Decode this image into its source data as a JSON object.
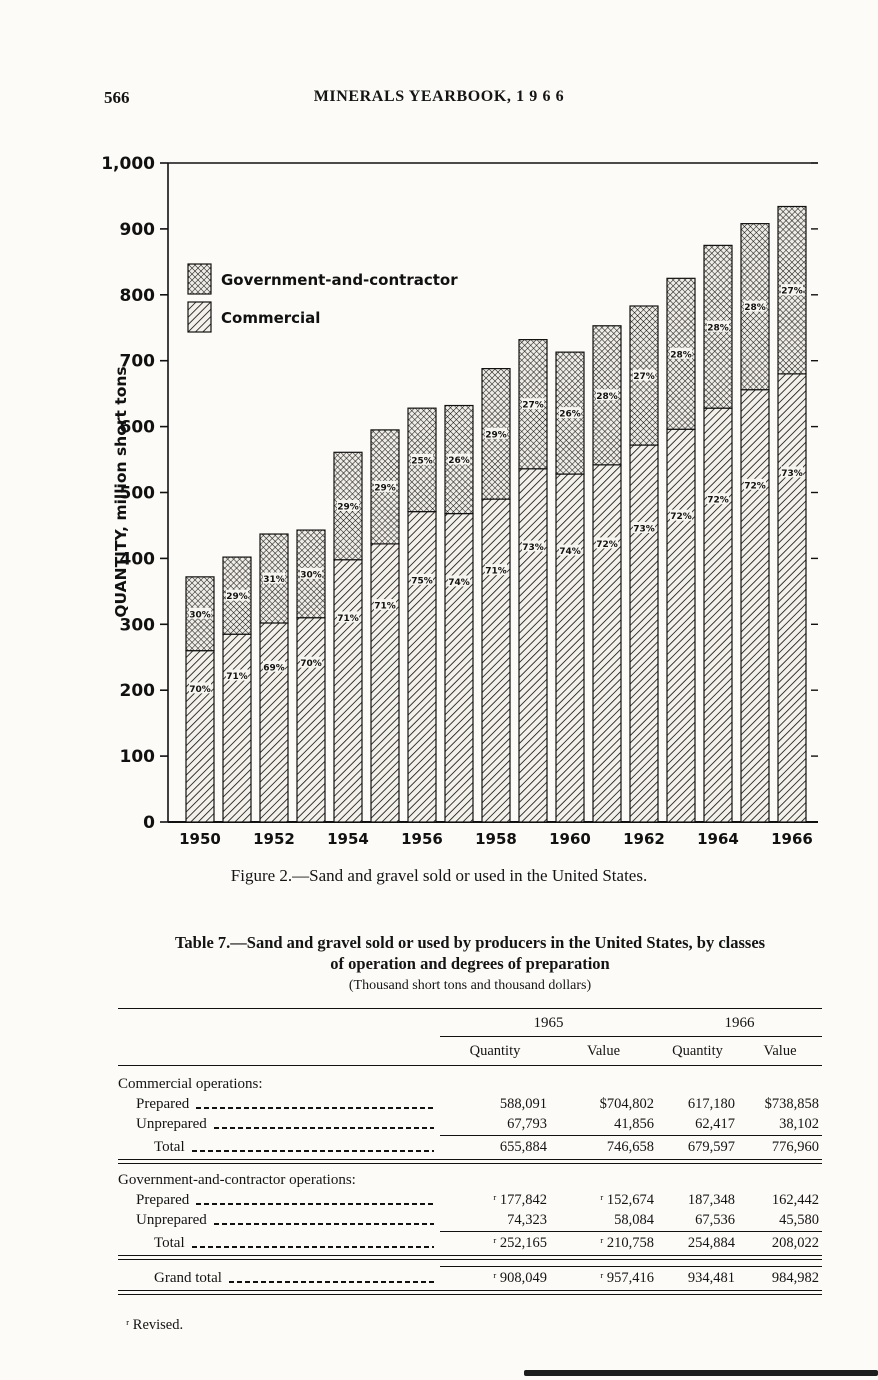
{
  "page": {
    "page_number": "566",
    "header_title": "MINERALS YEARBOOK, 1 9 6 6",
    "figure_caption": "Figure 2.—Sand and gravel sold or used in the United States."
  },
  "chart_data": {
    "type": "bar",
    "stacked": true,
    "title": "",
    "ylabel": "QUANTITY, million short tons",
    "ylim": [
      0,
      1000
    ],
    "ytick_interval": 100,
    "ytick_labels": [
      "0",
      "100",
      "200",
      "300",
      "400",
      "500",
      "600",
      "700",
      "800",
      "900",
      "1,000"
    ],
    "categories": [
      "1950",
      "1951",
      "1952",
      "1953",
      "1954",
      "1955",
      "1956",
      "1957",
      "1958",
      "1959",
      "1960",
      "1961",
      "1962",
      "1963",
      "1964",
      "1965",
      "1966"
    ],
    "xtick_shown": [
      "1950",
      "1952",
      "1954",
      "1956",
      "1958",
      "1960",
      "1962",
      "1964",
      "1966"
    ],
    "legend": [
      {
        "label": "Government-and-contractor",
        "pattern": "crosshatch"
      },
      {
        "label": "Commercial",
        "pattern": "diagonal-hatch"
      }
    ],
    "series": [
      {
        "name": "Commercial",
        "values": [
          260,
          285,
          302,
          310,
          398,
          422,
          471,
          468,
          490,
          536,
          528,
          542,
          572,
          596,
          628,
          656,
          680
        ]
      },
      {
        "name": "Government-and-contractor",
        "values": [
          112,
          117,
          135,
          133,
          163,
          173,
          157,
          164,
          198,
          196,
          185,
          211,
          211,
          229,
          247,
          252,
          254
        ]
      }
    ],
    "totals": [
      372,
      402,
      437,
      443,
      561,
      595,
      628,
      632,
      688,
      732,
      713,
      753,
      783,
      825,
      875,
      908,
      934
    ],
    "bar_labels": {
      "commercial_pct": [
        "70%",
        "71%",
        "69%",
        "70%",
        "71%",
        "71%",
        "75%",
        "74%",
        "71%",
        "73%",
        "74%",
        "72%",
        "73%",
        "72%",
        "72%",
        "72%",
        "73%"
      ],
      "government_pct": [
        "30%",
        "29%",
        "31%",
        "30%",
        "29%",
        "29%",
        "25%",
        "26%",
        "29%",
        "27%",
        "26%",
        "28%",
        "27%",
        "28%",
        "28%",
        "28%",
        "27%"
      ]
    }
  },
  "table": {
    "title_line1": "Table 7.—Sand and gravel sold or used by producers in the United States, by classes",
    "title_line2": "of operation and degrees of preparation",
    "subtitle": "(Thousand short tons and thousand dollars)",
    "year_headers": [
      "1965",
      "1966"
    ],
    "col_headers": [
      "Quantity",
      "Value",
      "Quantity",
      "Value"
    ],
    "rows": [
      {
        "label": "Commercial operations:",
        "type": "section",
        "indent": 0,
        "values": [
          "",
          "",
          "",
          ""
        ]
      },
      {
        "label": "Prepared",
        "type": "data",
        "indent": 1,
        "values": [
          "588,091",
          "$704,802",
          "617,180",
          "$738,858"
        ]
      },
      {
        "label": "Unprepared",
        "type": "data",
        "indent": 1,
        "values": [
          "67,793",
          "41,856",
          "62,417",
          "38,102"
        ]
      },
      {
        "label": "Total",
        "type": "total",
        "indent": 2,
        "values": [
          "655,884",
          "746,658",
          "679,597",
          "776,960"
        ],
        "rule_after": "double"
      },
      {
        "label": "Government-and-contractor operations:",
        "type": "section",
        "indent": 0,
        "values": [
          "",
          "",
          "",
          ""
        ]
      },
      {
        "label": "Prepared",
        "type": "data",
        "indent": 1,
        "values": [
          "ʳ 177,842",
          "ʳ 152,674",
          "187,348",
          "162,442"
        ]
      },
      {
        "label": "Unprepared",
        "type": "data",
        "indent": 1,
        "values": [
          "74,323",
          "58,084",
          "67,536",
          "45,580"
        ]
      },
      {
        "label": "Total",
        "type": "total",
        "indent": 2,
        "values": [
          "ʳ 252,165",
          "ʳ 210,758",
          "254,884",
          "208,022"
        ],
        "rule_after": "double"
      },
      {
        "label": "Grand total",
        "type": "grand",
        "indent": 2,
        "values": [
          "ʳ 908,049",
          "ʳ 957,416",
          "934,481",
          "984,982"
        ],
        "rule_after": "double"
      }
    ],
    "footnote": "ʳ Revised."
  }
}
